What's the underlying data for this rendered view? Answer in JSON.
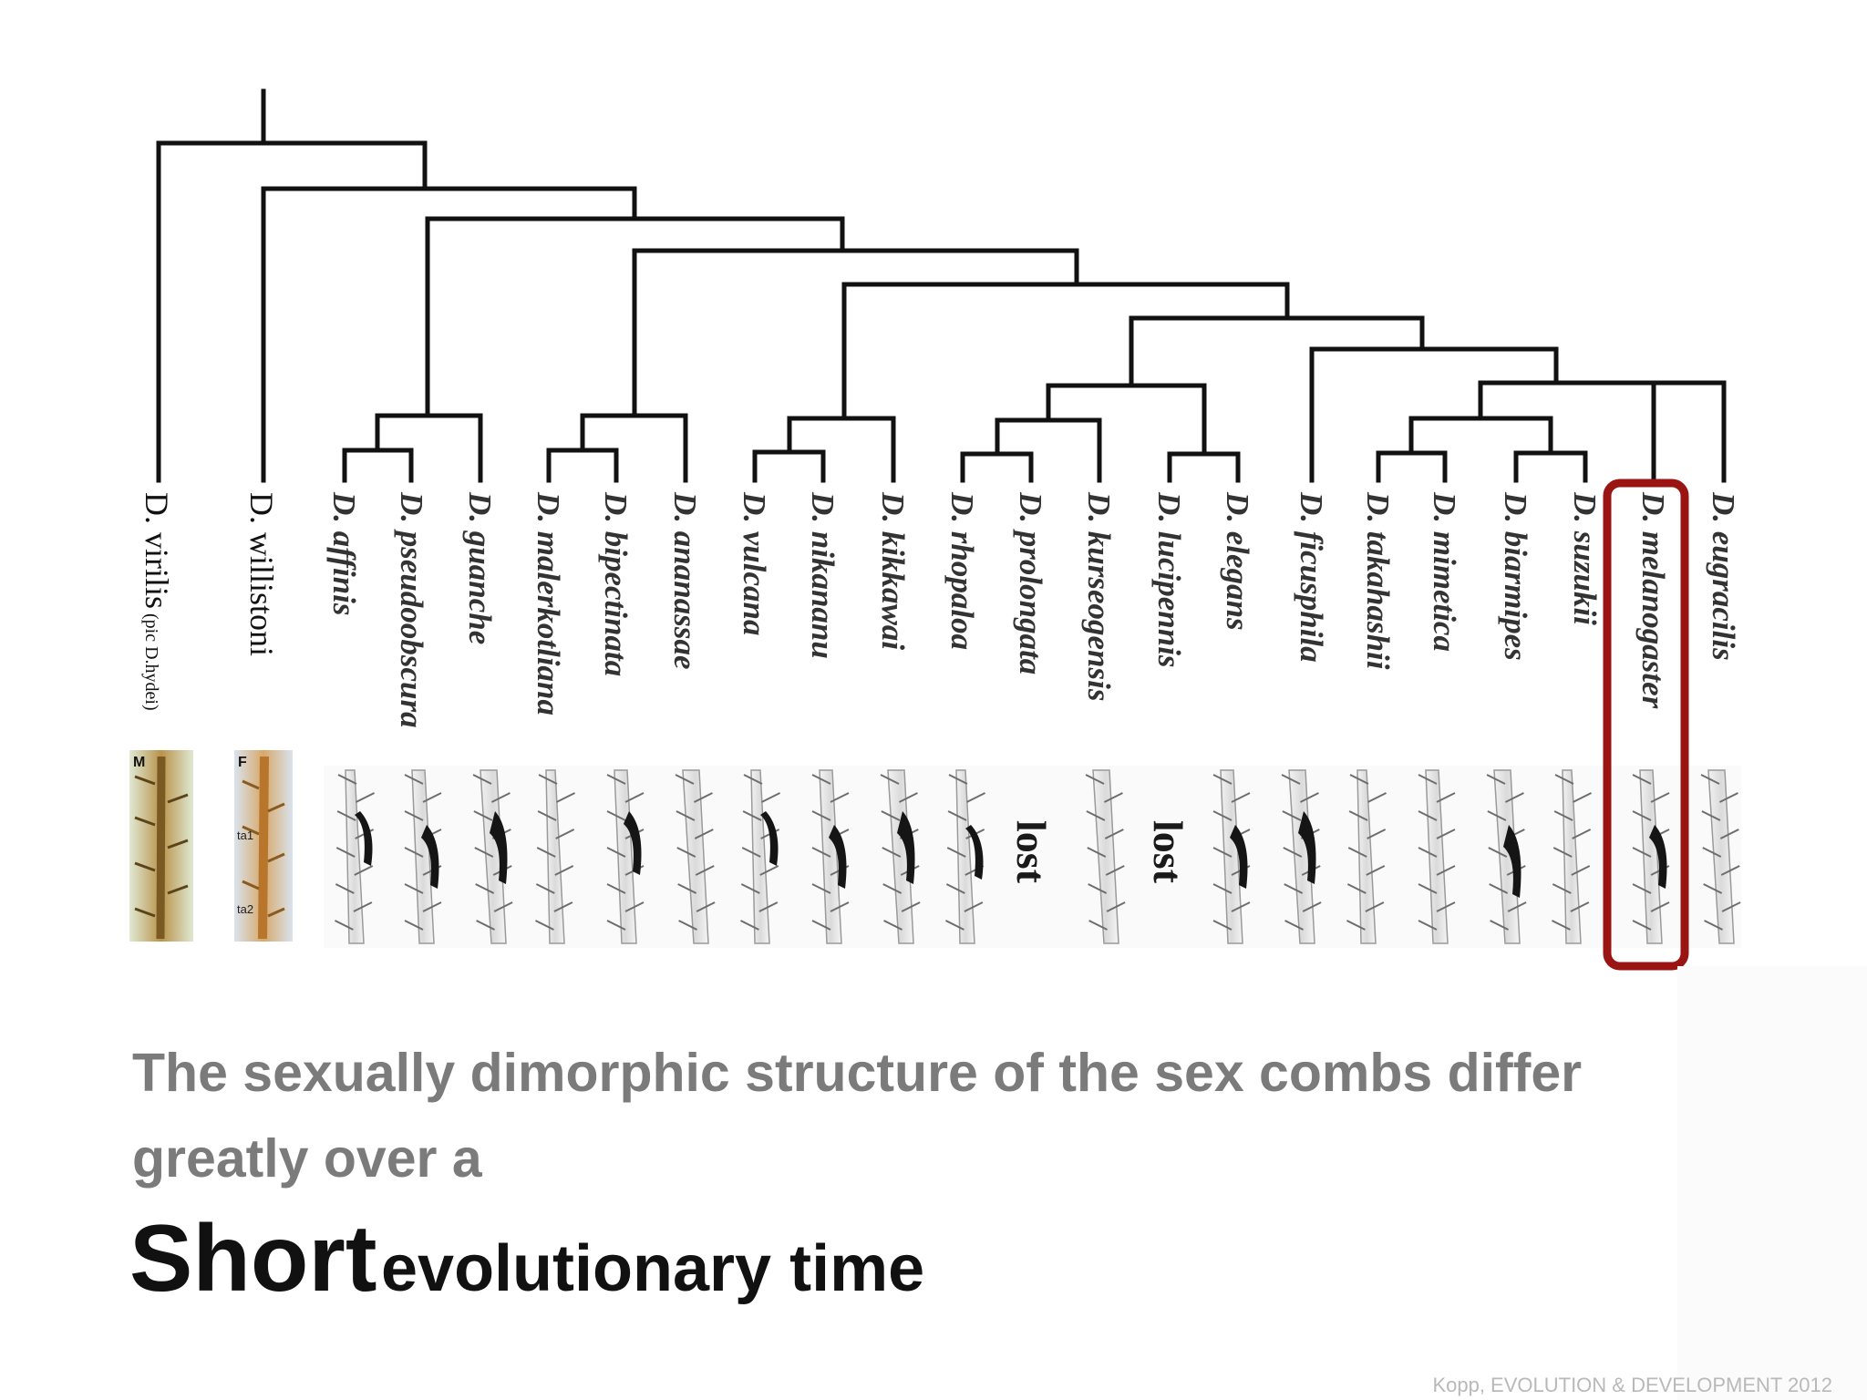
{
  "tree": {
    "outgroups": [
      {
        "genus": "D.",
        "species": "virilis",
        "note": "(pic D.hydei)",
        "inset_label": "M"
      },
      {
        "genus": "D.",
        "species": "willistoni",
        "inset_label": "F",
        "segment_labels": [
          "ta1",
          "ta2"
        ]
      }
    ],
    "taxa": [
      "D. affinis",
      "D. pseudoobscura",
      "D. guanche",
      "D. malerkotliana",
      "D. bipectinata",
      "D. ananassae",
      "D. vulcana",
      "D. nikananu",
      "D. kikkawai",
      "D. rhopaloa",
      "D. prolongata",
      "D. kurseogensis",
      "D. lucipennis",
      "D. elegans",
      "D. ficusphila",
      "D. takahashii",
      "D. mimetica",
      "D. biarmipes",
      "D. suzukii",
      "D. melanogaster",
      "D. eugracilis"
    ],
    "highlighted_taxon": "D. melanogaster",
    "highlight_color": "#9b1414",
    "lost_label": "lost"
  },
  "caption": "The sexually dimorphic structure of the sex combs differ greatly over a",
  "headline": {
    "emphasis": "Short",
    "rest": "evolutionary time"
  },
  "credit": "Kopp, EVOLUTION & DEVELOPMENT 2012"
}
